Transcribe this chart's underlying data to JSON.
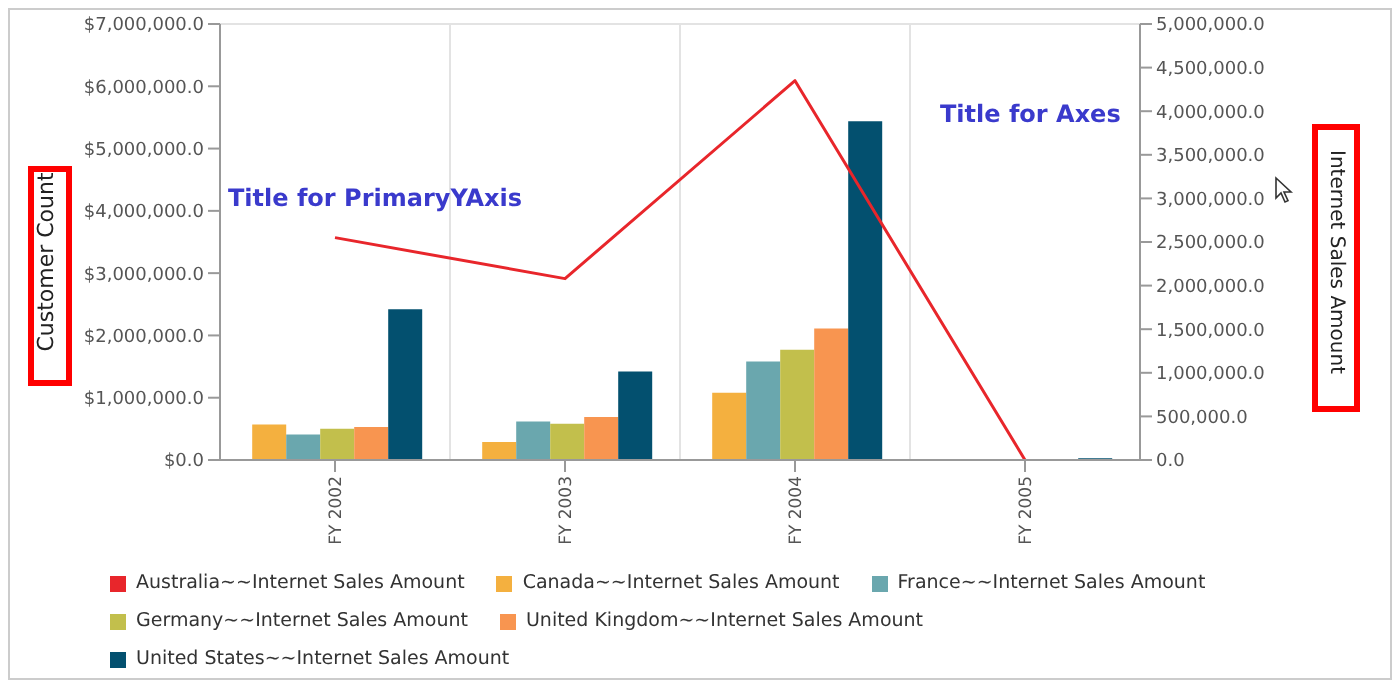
{
  "chart_data": {
    "type": "bar",
    "ylabel": "Customer Count",
    "y2label": "Internet Sales Amount",
    "categories": [
      "FY 2002",
      "FY 2003",
      "FY 2004",
      "FY 2005"
    ],
    "series": [
      {
        "name": "Australia~~Internet Sales Amount",
        "type": "line",
        "axis": "y2",
        "color": "#e8262b",
        "values": [
          2550000,
          2080000,
          4350000,
          0
        ]
      },
      {
        "name": "Canada~~Internet Sales Amount",
        "color": "#f4b03f",
        "values": [
          570000,
          290000,
          1080000,
          0
        ]
      },
      {
        "name": "France~~Internet Sales Amount",
        "color": "#6aa7ae",
        "values": [
          410000,
          620000,
          1580000,
          0
        ]
      },
      {
        "name": "Germany~~Internet Sales Amount",
        "color": "#c2bf4c",
        "values": [
          500000,
          580000,
          1770000,
          0
        ]
      },
      {
        "name": "United Kingdom~~Internet Sales Amount",
        "color": "#f89550",
        "values": [
          530000,
          690000,
          2110000,
          0
        ]
      },
      {
        "name": "United States~~Internet Sales Amount",
        "color": "#03506f",
        "values": [
          2420000,
          1420000,
          5440000,
          30000
        ]
      }
    ],
    "ylim": [
      0,
      7000000
    ],
    "yticks": [
      {
        "value": 0,
        "label": "$0.0"
      },
      {
        "value": 1000000,
        "label": "$1,000,000.0"
      },
      {
        "value": 2000000,
        "label": "$2,000,000.0"
      },
      {
        "value": 3000000,
        "label": "$3,000,000.0"
      },
      {
        "value": 4000000,
        "label": "$4,000,000.0"
      },
      {
        "value": 5000000,
        "label": "$5,000,000.0"
      },
      {
        "value": 6000000,
        "label": "$6,000,000.0"
      },
      {
        "value": 7000000,
        "label": "$7,000,000.0"
      }
    ],
    "y2lim": [
      0,
      5000000
    ],
    "y2ticks": [
      {
        "value": 0,
        "label": "0.0"
      },
      {
        "value": 500000,
        "label": "500,000.0"
      },
      {
        "value": 1000000,
        "label": "1,000,000.0"
      },
      {
        "value": 1500000,
        "label": "1,500,000.0"
      },
      {
        "value": 2000000,
        "label": "2,000,000.0"
      },
      {
        "value": 2500000,
        "label": "2,500,000.0"
      },
      {
        "value": 3000000,
        "label": "3,000,000.0"
      },
      {
        "value": 3500000,
        "label": "3,500,000.0"
      },
      {
        "value": 4000000,
        "label": "4,000,000.0"
      },
      {
        "value": 4500000,
        "label": "4,500,000.0"
      },
      {
        "value": 5000000,
        "label": "5,000,000.0"
      }
    ],
    "annotations": [
      "Title for PrimaryYAxis",
      "Title for Axes"
    ],
    "grid": true,
    "legend": "bottom"
  }
}
